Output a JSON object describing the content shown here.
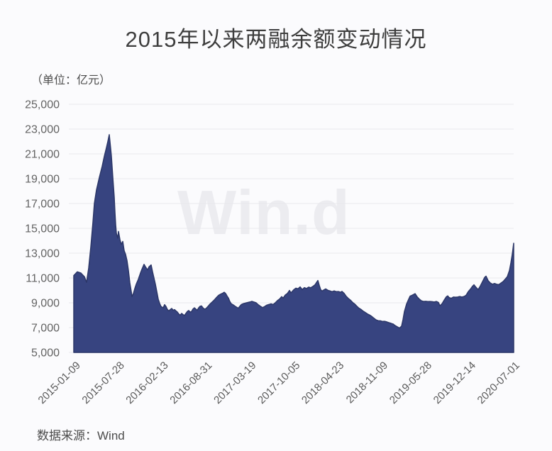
{
  "title": "2015年以来两融余额变动情况",
  "unit_label": "（单位：亿元）",
  "watermark": "Win.d",
  "footer": {
    "source_label": "数据来源：Wind"
  },
  "colors": {
    "background": "#fbfbfd",
    "area_fill": "#374480",
    "area_edge": "#2c3768",
    "grid_line": "#e9e9ed",
    "title_text": "#3e3e3e",
    "axis_text": "#5f5f5f",
    "watermark_text": "#ececf0"
  },
  "chart_data": {
    "type": "area",
    "title": "2015年以来两融余额变动情况",
    "unit": "亿元",
    "xlabel": "",
    "ylabel": "",
    "grid": true,
    "legend": false,
    "ylim": [
      5000,
      25000
    ],
    "y_ticks": [
      25000,
      23000,
      21000,
      19000,
      17000,
      15000,
      13000,
      11000,
      9000,
      7000,
      5000
    ],
    "y_tick_labels": [
      "25,000",
      "23,000",
      "21,000",
      "19,000",
      "17,000",
      "15,000",
      "13,000",
      "11,000",
      "9,000",
      "7,000",
      "5,000"
    ],
    "x_tick_labels": [
      "2015-01-09",
      "2015-07-28",
      "2016-02-13",
      "2016-08-31",
      "2017-03-19",
      "2017-10-05",
      "2018-04-23",
      "2018-11-09",
      "2019-05-28",
      "2019-12-14",
      "2020-07-01"
    ],
    "x_range": [
      "2015-01-09",
      "2020-07-01"
    ],
    "x_encoding": "each point x is a fraction of the x-axis: 0.0 = 2015-01-09, 1.0 = 2020-07-01, ticks every 0.1 (about 200 days)",
    "series": [
      {
        "name": "两融余额",
        "points": [
          [
            0.0,
            11200
          ],
          [
            0.0081,
            11500
          ],
          [
            0.0162,
            11400
          ],
          [
            0.0242,
            11100
          ],
          [
            0.0291,
            10650
          ],
          [
            0.0339,
            11800
          ],
          [
            0.0388,
            13500
          ],
          [
            0.0436,
            15500
          ],
          [
            0.0469,
            17000
          ],
          [
            0.0517,
            18100
          ],
          [
            0.0582,
            19100
          ],
          [
            0.0646,
            20000
          ],
          [
            0.0695,
            20800
          ],
          [
            0.0743,
            21500
          ],
          [
            0.0775,
            22000
          ],
          [
            0.0808,
            22550
          ],
          [
            0.084,
            21400
          ],
          [
            0.0856,
            20800
          ],
          [
            0.0889,
            19100
          ],
          [
            0.0921,
            17500
          ],
          [
            0.0937,
            16300
          ],
          [
            0.0953,
            15300
          ],
          [
            0.0969,
            14600
          ],
          [
            0.1002,
            14200
          ],
          [
            0.1018,
            14750
          ],
          [
            0.105,
            14100
          ],
          [
            0.1083,
            13700
          ],
          [
            0.1115,
            13950
          ],
          [
            0.1147,
            13200
          ],
          [
            0.1179,
            12900
          ],
          [
            0.1212,
            12400
          ],
          [
            0.1244,
            11600
          ],
          [
            0.1276,
            10600
          ],
          [
            0.1309,
            9900
          ],
          [
            0.1325,
            9500
          ],
          [
            0.1357,
            9750
          ],
          [
            0.1389,
            10150
          ],
          [
            0.1422,
            10500
          ],
          [
            0.147,
            10900
          ],
          [
            0.1519,
            11400
          ],
          [
            0.1551,
            11700
          ],
          [
            0.1599,
            12100
          ],
          [
            0.1632,
            11900
          ],
          [
            0.168,
            11650
          ],
          [
            0.1712,
            11900
          ],
          [
            0.1761,
            12050
          ],
          [
            0.1793,
            11500
          ],
          [
            0.1825,
            11000
          ],
          [
            0.1858,
            10500
          ],
          [
            0.189,
            9900
          ],
          [
            0.1922,
            9300
          ],
          [
            0.1955,
            8950
          ],
          [
            0.1987,
            8700
          ],
          [
            0.2036,
            8600
          ],
          [
            0.2068,
            8850
          ],
          [
            0.21,
            8700
          ],
          [
            0.2133,
            8450
          ],
          [
            0.2165,
            8350
          ],
          [
            0.2197,
            8450
          ],
          [
            0.2229,
            8550
          ],
          [
            0.2262,
            8400
          ],
          [
            0.2294,
            8450
          ],
          [
            0.2326,
            8350
          ],
          [
            0.2359,
            8250
          ],
          [
            0.2391,
            8100
          ],
          [
            0.2423,
            8000
          ],
          [
            0.2456,
            8150
          ],
          [
            0.2488,
            8050
          ],
          [
            0.252,
            7980
          ],
          [
            0.2553,
            8150
          ],
          [
            0.2585,
            8300
          ],
          [
            0.2617,
            8380
          ],
          [
            0.2649,
            8250
          ],
          [
            0.2682,
            8300
          ],
          [
            0.2714,
            8500
          ],
          [
            0.2746,
            8600
          ],
          [
            0.2779,
            8500
          ],
          [
            0.2811,
            8400
          ],
          [
            0.2843,
            8600
          ],
          [
            0.2876,
            8720
          ],
          [
            0.2908,
            8750
          ],
          [
            0.294,
            8600
          ],
          [
            0.2973,
            8500
          ],
          [
            0.3005,
            8520
          ],
          [
            0.3053,
            8700
          ],
          [
            0.3102,
            8900
          ],
          [
            0.315,
            9060
          ],
          [
            0.3199,
            9220
          ],
          [
            0.3247,
            9420
          ],
          [
            0.3296,
            9600
          ],
          [
            0.3344,
            9700
          ],
          [
            0.3393,
            9780
          ],
          [
            0.3425,
            9850
          ],
          [
            0.3457,
            9750
          ],
          [
            0.349,
            9550
          ],
          [
            0.3522,
            9380
          ],
          [
            0.3554,
            9100
          ],
          [
            0.3587,
            8920
          ],
          [
            0.3635,
            8820
          ],
          [
            0.3683,
            8700
          ],
          [
            0.3716,
            8630
          ],
          [
            0.3748,
            8570
          ],
          [
            0.378,
            8720
          ],
          [
            0.3813,
            8850
          ],
          [
            0.3861,
            8930
          ],
          [
            0.391,
            8980
          ],
          [
            0.3958,
            9020
          ],
          [
            0.4006,
            9060
          ],
          [
            0.4055,
            9120
          ],
          [
            0.4103,
            9060
          ],
          [
            0.4152,
            9000
          ],
          [
            0.42,
            8840
          ],
          [
            0.4249,
            8720
          ],
          [
            0.4297,
            8610
          ],
          [
            0.4346,
            8700
          ],
          [
            0.4394,
            8810
          ],
          [
            0.4443,
            8860
          ],
          [
            0.4491,
            8920
          ],
          [
            0.454,
            8860
          ],
          [
            0.4588,
            9000
          ],
          [
            0.4637,
            9180
          ],
          [
            0.4685,
            9300
          ],
          [
            0.4734,
            9500
          ],
          [
            0.4766,
            9380
          ],
          [
            0.4814,
            9620
          ],
          [
            0.4863,
            9750
          ],
          [
            0.4911,
            10000
          ],
          [
            0.4944,
            9800
          ],
          [
            0.4976,
            9920
          ],
          [
            0.5008,
            10050
          ],
          [
            0.5057,
            10180
          ],
          [
            0.5105,
            10130
          ],
          [
            0.5154,
            10280
          ],
          [
            0.5202,
            10060
          ],
          [
            0.525,
            10220
          ],
          [
            0.5299,
            10150
          ],
          [
            0.5347,
            10260
          ],
          [
            0.5396,
            10210
          ],
          [
            0.5444,
            10320
          ],
          [
            0.5493,
            10450
          ],
          [
            0.5525,
            10620
          ],
          [
            0.5557,
            10800
          ],
          [
            0.559,
            10400
          ],
          [
            0.5622,
            10050
          ],
          [
            0.5654,
            9950
          ],
          [
            0.5687,
            10020
          ],
          [
            0.5735,
            10120
          ],
          [
            0.5784,
            10010
          ],
          [
            0.5832,
            9960
          ],
          [
            0.5881,
            9900
          ],
          [
            0.5929,
            9960
          ],
          [
            0.5978,
            9900
          ],
          [
            0.6026,
            9910
          ],
          [
            0.6075,
            9850
          ],
          [
            0.6107,
            9920
          ],
          [
            0.6155,
            9760
          ],
          [
            0.6204,
            9520
          ],
          [
            0.6252,
            9350
          ],
          [
            0.6301,
            9210
          ],
          [
            0.6349,
            9030
          ],
          [
            0.6398,
            8900
          ],
          [
            0.6446,
            8720
          ],
          [
            0.6494,
            8560
          ],
          [
            0.6543,
            8460
          ],
          [
            0.6591,
            8320
          ],
          [
            0.664,
            8210
          ],
          [
            0.6688,
            8100
          ],
          [
            0.6737,
            8010
          ],
          [
            0.6785,
            7900
          ],
          [
            0.6834,
            7760
          ],
          [
            0.6882,
            7620
          ],
          [
            0.6931,
            7560
          ],
          [
            0.6979,
            7550
          ],
          [
            0.7028,
            7500
          ],
          [
            0.7076,
            7510
          ],
          [
            0.7124,
            7460
          ],
          [
            0.7173,
            7400
          ],
          [
            0.7221,
            7350
          ],
          [
            0.727,
            7290
          ],
          [
            0.7318,
            7160
          ],
          [
            0.7367,
            7060
          ],
          [
            0.7415,
            6960
          ],
          [
            0.7464,
            7120
          ],
          [
            0.7496,
            7640
          ],
          [
            0.7528,
            8300
          ],
          [
            0.7577,
            8900
          ],
          [
            0.7625,
            9290
          ],
          [
            0.7658,
            9540
          ],
          [
            0.7706,
            9610
          ],
          [
            0.7771,
            9740
          ],
          [
            0.7819,
            9480
          ],
          [
            0.7868,
            9300
          ],
          [
            0.7916,
            9160
          ],
          [
            0.7965,
            9110
          ],
          [
            0.8013,
            9120
          ],
          [
            0.8061,
            9100
          ],
          [
            0.811,
            9110
          ],
          [
            0.8158,
            9090
          ],
          [
            0.8207,
            9060
          ],
          [
            0.8255,
            9110
          ],
          [
            0.8304,
            9020
          ],
          [
            0.8336,
            8760
          ],
          [
            0.8384,
            8920
          ],
          [
            0.8433,
            9210
          ],
          [
            0.8481,
            9480
          ],
          [
            0.8514,
            9560
          ],
          [
            0.8546,
            9420
          ],
          [
            0.8594,
            9360
          ],
          [
            0.8643,
            9460
          ],
          [
            0.8691,
            9450
          ],
          [
            0.874,
            9460
          ],
          [
            0.8788,
            9510
          ],
          [
            0.8837,
            9460
          ],
          [
            0.8885,
            9510
          ],
          [
            0.8934,
            9610
          ],
          [
            0.8982,
            9900
          ],
          [
            0.9031,
            10100
          ],
          [
            0.9079,
            10340
          ],
          [
            0.9112,
            10450
          ],
          [
            0.916,
            10240
          ],
          [
            0.9208,
            10060
          ],
          [
            0.9257,
            10360
          ],
          [
            0.9305,
            10700
          ],
          [
            0.9354,
            11040
          ],
          [
            0.9386,
            11150
          ],
          [
            0.9435,
            10790
          ],
          [
            0.9483,
            10600
          ],
          [
            0.9532,
            10500
          ],
          [
            0.958,
            10560
          ],
          [
            0.9628,
            10500
          ],
          [
            0.9677,
            10460
          ],
          [
            0.9725,
            10590
          ],
          [
            0.9774,
            10710
          ],
          [
            0.9822,
            10900
          ],
          [
            0.9871,
            11100
          ],
          [
            0.9919,
            11600
          ],
          [
            0.9952,
            12200
          ],
          [
            0.9984,
            12900
          ],
          [
            1.0016,
            13800
          ]
        ]
      }
    ]
  }
}
